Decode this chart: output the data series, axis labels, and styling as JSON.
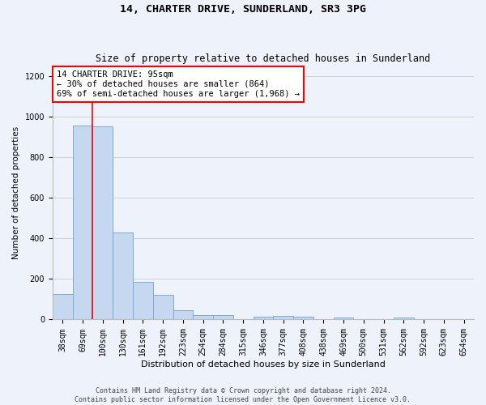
{
  "title": "14, CHARTER DRIVE, SUNDERLAND, SR3 3PG",
  "subtitle": "Size of property relative to detached houses in Sunderland",
  "xlabel": "Distribution of detached houses by size in Sunderland",
  "ylabel": "Number of detached properties",
  "categories": [
    "38sqm",
    "69sqm",
    "100sqm",
    "130sqm",
    "161sqm",
    "192sqm",
    "223sqm",
    "254sqm",
    "284sqm",
    "315sqm",
    "346sqm",
    "377sqm",
    "408sqm",
    "438sqm",
    "469sqm",
    "500sqm",
    "531sqm",
    "562sqm",
    "592sqm",
    "623sqm",
    "654sqm"
  ],
  "values": [
    125,
    955,
    950,
    430,
    185,
    120,
    45,
    20,
    20,
    0,
    15,
    18,
    12,
    0,
    10,
    0,
    0,
    10,
    0,
    0,
    0
  ],
  "bar_color": "#c5d8f0",
  "bar_edge_color": "#7aadd4",
  "vline_x": 1.5,
  "vline_color": "red",
  "annotation_text": "14 CHARTER DRIVE: 95sqm\n← 30% of detached houses are smaller (864)\n69% of semi-detached houses are larger (1,968) →",
  "annotation_box_color": "white",
  "annotation_box_edge_color": "red",
  "ylim": [
    0,
    1250
  ],
  "yticks": [
    0,
    200,
    400,
    600,
    800,
    1000,
    1200
  ],
  "grid_color": "#d0d0d0",
  "bg_color": "#eef2fb",
  "footer_text": "Contains HM Land Registry data © Crown copyright and database right 2024.\nContains public sector information licensed under the Open Government Licence v3.0.",
  "title_fontsize": 9.5,
  "subtitle_fontsize": 8.5,
  "ylabel_fontsize": 7.5,
  "xlabel_fontsize": 8,
  "tick_fontsize": 7,
  "annotation_fontsize": 7.5,
  "footer_fontsize": 6
}
